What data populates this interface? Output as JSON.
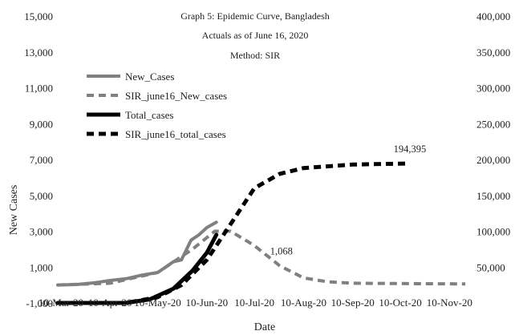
{
  "chart_data": {
    "type": "line",
    "title_lines": [
      "Graph 5: Epidemic Curve, Bangladesh",
      "Actuals as of June 16, 2020",
      "Method: SIR"
    ],
    "xlabel": "Date",
    "ylabel": "New Cases",
    "x_tick_labels": [
      "10-Mar-20",
      "10-Apr-20",
      "10-May-20",
      "10-Jun-20",
      "10-Jul-20",
      "10-Aug-20",
      "10-Sep-20",
      "10-Oct-20",
      "10-Nov-20"
    ],
    "x_tick_dates": [
      "2020-03-10",
      "2020-04-10",
      "2020-05-10",
      "2020-06-10",
      "2020-07-10",
      "2020-08-10",
      "2020-09-10",
      "2020-10-10",
      "2020-11-10"
    ],
    "xlim": [
      "2020-03-08",
      "2020-11-24"
    ],
    "y_left": {
      "ylim": [
        -1000,
        15000
      ],
      "ticks": [
        -1000,
        1000,
        3000,
        5000,
        7000,
        9000,
        11000,
        13000,
        15000
      ],
      "tick_labels": [
        "-1,000",
        "1,000",
        "3,000",
        "5,000",
        "7,000",
        "9,000",
        "11,000",
        "13,000",
        "15,000"
      ]
    },
    "y_right": {
      "ylim": [
        0,
        400000
      ],
      "ticks": [
        50000,
        100000,
        150000,
        200000,
        250000,
        300000,
        350000,
        400000
      ],
      "tick_labels": [
        "50,000",
        "100,000",
        "150,000",
        "200,000",
        "250,000",
        "300,000",
        "350,000",
        "400,000"
      ]
    },
    "legend": {
      "position": "top-left",
      "entries": [
        "New_Cases",
        "SIR_june16_New_cases",
        "Total_cases",
        "SIR_june16_total_cases"
      ]
    },
    "annotations": [
      {
        "text": "1,068",
        "x": "2020-07-26",
        "y": 1068,
        "axis": "left"
      },
      {
        "text": "194,395",
        "x": "2020-10-15",
        "y": 194395,
        "axis": "right"
      }
    ],
    "series": [
      {
        "name": "New_Cases",
        "axis": "left",
        "color": "#808080",
        "style": "solid",
        "width": 4,
        "points": [
          [
            "2020-03-08",
            0
          ],
          [
            "2020-03-20",
            30
          ],
          [
            "2020-03-31",
            120
          ],
          [
            "2020-04-10",
            250
          ],
          [
            "2020-04-20",
            350
          ],
          [
            "2020-04-30",
            550
          ],
          [
            "2020-05-10",
            700
          ],
          [
            "2020-05-20",
            1300
          ],
          [
            "2020-05-25",
            1400
          ],
          [
            "2020-05-31",
            2500
          ],
          [
            "2020-06-05",
            2800
          ],
          [
            "2020-06-10",
            3200
          ],
          [
            "2020-06-16",
            3500
          ]
        ]
      },
      {
        "name": "SIR_june16_New_cases",
        "axis": "left",
        "color": "#808080",
        "style": "dashed",
        "width": 4,
        "points": [
          [
            "2020-03-08",
            0
          ],
          [
            "2020-04-10",
            100
          ],
          [
            "2020-05-10",
            700
          ],
          [
            "2020-06-01",
            2000
          ],
          [
            "2020-06-15",
            3000
          ],
          [
            "2020-06-25",
            3000
          ],
          [
            "2020-07-10",
            2200
          ],
          [
            "2020-07-26",
            1068
          ],
          [
            "2020-08-10",
            400
          ],
          [
            "2020-08-25",
            180
          ],
          [
            "2020-09-10",
            100
          ],
          [
            "2020-10-10",
            80
          ],
          [
            "2020-11-20",
            60
          ]
        ]
      },
      {
        "name": "Total_cases",
        "axis": "right",
        "color": "#000000",
        "style": "solid",
        "width": 5,
        "points": [
          [
            "2020-03-08",
            0
          ],
          [
            "2020-04-20",
            0
          ],
          [
            "2020-05-05",
            5000
          ],
          [
            "2020-05-20",
            20000
          ],
          [
            "2020-06-01",
            45000
          ],
          [
            "2020-06-10",
            70000
          ],
          [
            "2020-06-16",
            95000
          ]
        ]
      },
      {
        "name": "SIR_june16_total_cases",
        "axis": "right",
        "color": "#000000",
        "style": "dashed",
        "width": 5,
        "points": [
          [
            "2020-03-08",
            0
          ],
          [
            "2020-04-20",
            0
          ],
          [
            "2020-05-10",
            8000
          ],
          [
            "2020-05-25",
            25000
          ],
          [
            "2020-06-10",
            60000
          ],
          [
            "2020-06-25",
            110000
          ],
          [
            "2020-07-10",
            160000
          ],
          [
            "2020-07-26",
            180000
          ],
          [
            "2020-08-10",
            188000
          ],
          [
            "2020-09-10",
            193000
          ],
          [
            "2020-10-15",
            194395
          ]
        ]
      }
    ]
  }
}
